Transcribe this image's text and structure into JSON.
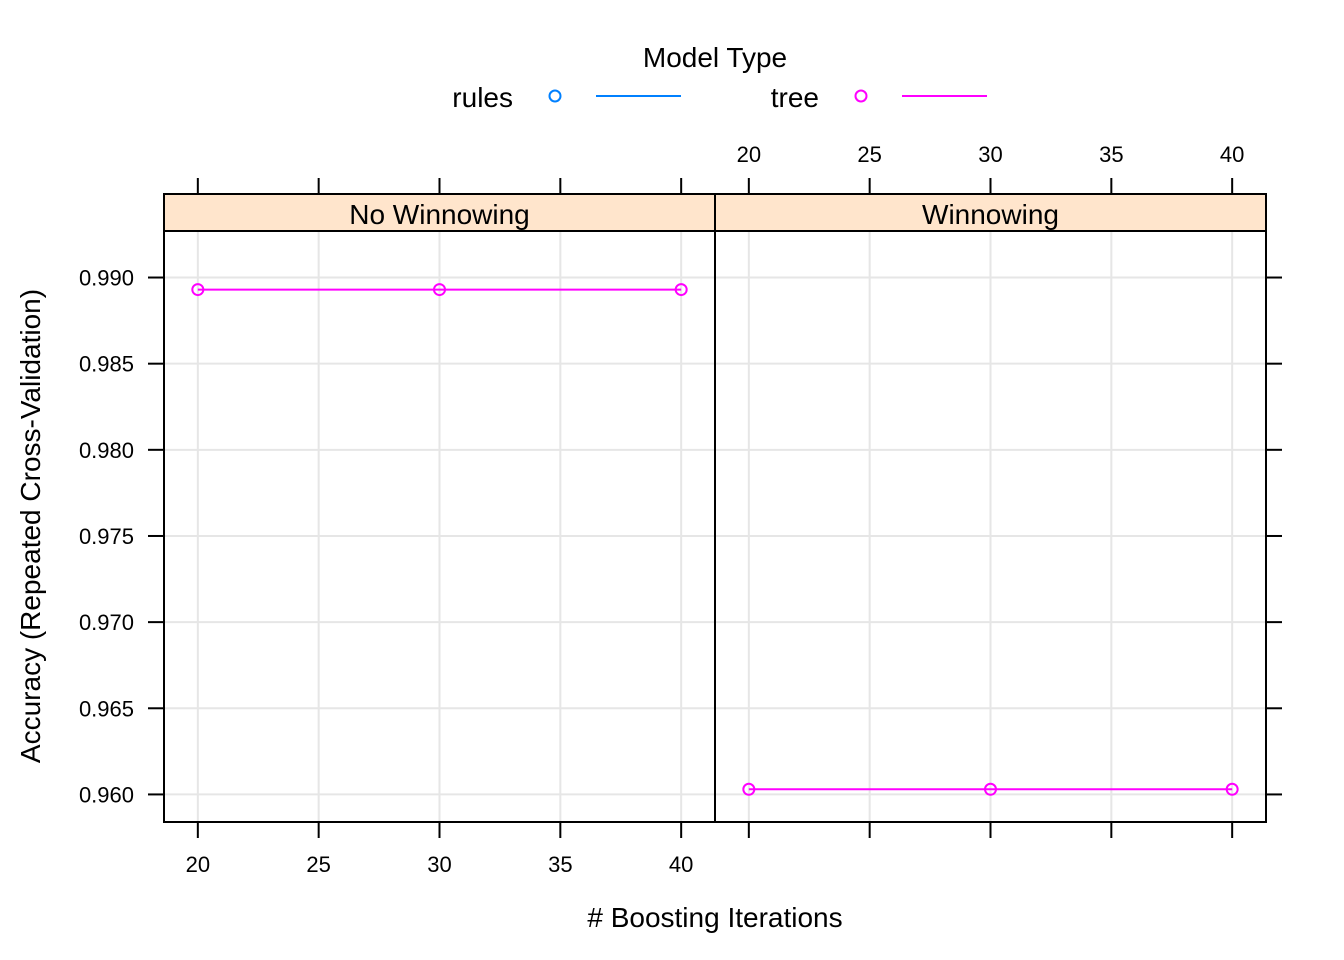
{
  "chart_data": {
    "type": "line",
    "legend": {
      "title": "Model Type",
      "placement": "top",
      "entries": [
        {
          "name": "rules",
          "color": "#0080ff"
        },
        {
          "name": "tree",
          "color": "#ff00ff"
        }
      ]
    },
    "xlabel": "# Boosting Iterations",
    "ylabel": "Accuracy (Repeated Cross-Validation)",
    "xlim": [
      18.6,
      41.4
    ],
    "ylim": [
      0.9584,
      0.9927
    ],
    "x_ticks": [
      20,
      25,
      30,
      35,
      40
    ],
    "y_ticks": [
      0.96,
      0.965,
      0.97,
      0.975,
      0.98,
      0.985,
      0.99
    ],
    "y_tick_labels": [
      "0.960",
      "0.965",
      "0.970",
      "0.975",
      "0.980",
      "0.985",
      "0.990"
    ],
    "grid": true,
    "strip_color": "#ffe5cc",
    "panels": [
      {
        "strip": "No Winnowing",
        "series": [
          {
            "name": "tree",
            "color": "#ff00ff",
            "x": [
              20,
              30,
              40
            ],
            "y": [
              0.9893,
              0.9893,
              0.9893
            ]
          }
        ]
      },
      {
        "strip": "Winnowing",
        "series": [
          {
            "name": "tree",
            "color": "#ff00ff",
            "x": [
              20,
              30,
              40
            ],
            "y": [
              0.9603,
              0.9603,
              0.9603
            ]
          }
        ]
      }
    ]
  }
}
